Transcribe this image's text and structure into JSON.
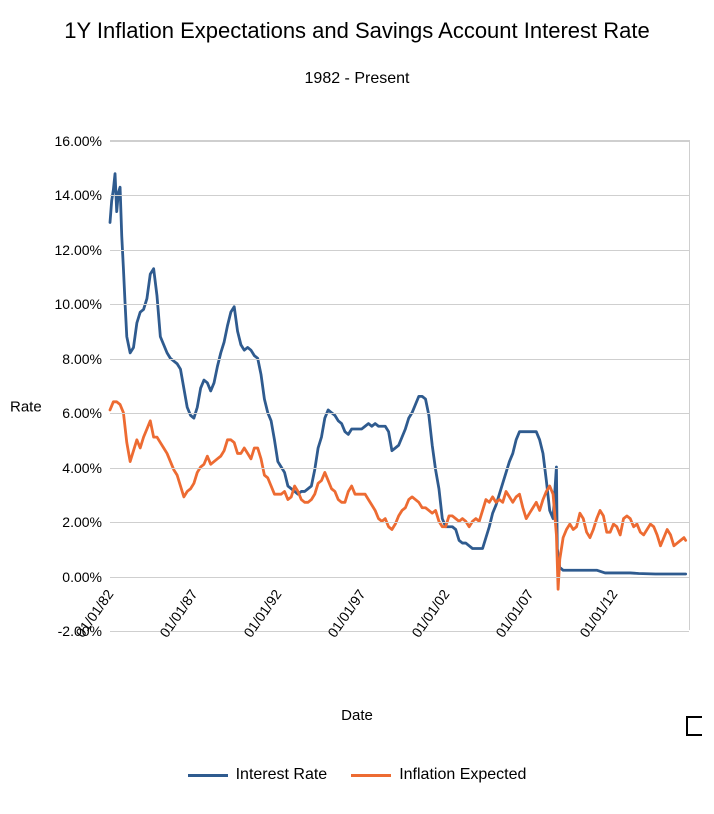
{
  "title": "1Y Inflation Expectations and Savings Account Interest Rate",
  "subtitle": "1982 - Present",
  "y_axis_label": "Rate",
  "x_axis_label": "Date",
  "y_axis": {
    "min": -2.0,
    "max": 16.0,
    "ticks": [
      -2.0,
      0.0,
      2.0,
      4.0,
      6.0,
      8.0,
      10.0,
      12.0,
      14.0,
      16.0
    ],
    "tick_labels": [
      "-2.00%",
      "0.00%",
      "2.00%",
      "4.00%",
      "6.00%",
      "8.00%",
      "10.00%",
      "12.00%",
      "14.00%",
      "16.00%"
    ]
  },
  "x_axis": {
    "min": 1982.0,
    "max": 2016.5,
    "ticks": [
      1982.0,
      1987.0,
      1992.0,
      1997.0,
      2002.0,
      2007.0,
      2012.0
    ],
    "tick_labels": [
      "01/01/82",
      "01/01/87",
      "01/01/92",
      "01/01/97",
      "01/01/02",
      "01/01/07",
      "01/01/12"
    ]
  },
  "grid_color": "#cfcfcf",
  "background_color": "#ffffff",
  "title_fontsize": 22,
  "subtitle_fontsize": 16,
  "label_fontsize": 15,
  "tick_fontsize": 14,
  "legend_fontsize": 16,
  "line_width": 2.8,
  "series": [
    {
      "name": "Interest Rate",
      "color": "#2f5b8f",
      "points": [
        [
          1982.0,
          13.0
        ],
        [
          1982.1,
          13.8
        ],
        [
          1982.2,
          14.2
        ],
        [
          1982.3,
          14.8
        ],
        [
          1982.4,
          13.4
        ],
        [
          1982.5,
          14.1
        ],
        [
          1982.6,
          14.3
        ],
        [
          1982.7,
          12.5
        ],
        [
          1982.8,
          11.3
        ],
        [
          1982.9,
          10.0
        ],
        [
          1983.0,
          8.8
        ],
        [
          1983.2,
          8.2
        ],
        [
          1983.4,
          8.4
        ],
        [
          1983.6,
          9.3
        ],
        [
          1983.8,
          9.7
        ],
        [
          1984.0,
          9.8
        ],
        [
          1984.2,
          10.2
        ],
        [
          1984.4,
          11.1
        ],
        [
          1984.6,
          11.3
        ],
        [
          1984.8,
          10.3
        ],
        [
          1985.0,
          8.8
        ],
        [
          1985.2,
          8.5
        ],
        [
          1985.4,
          8.2
        ],
        [
          1985.6,
          8.0
        ],
        [
          1985.8,
          7.9
        ],
        [
          1986.0,
          7.8
        ],
        [
          1986.2,
          7.6
        ],
        [
          1986.4,
          6.9
        ],
        [
          1986.6,
          6.2
        ],
        [
          1986.8,
          5.9
        ],
        [
          1987.0,
          5.8
        ],
        [
          1987.2,
          6.2
        ],
        [
          1987.4,
          6.9
        ],
        [
          1987.6,
          7.2
        ],
        [
          1987.8,
          7.1
        ],
        [
          1988.0,
          6.8
        ],
        [
          1988.2,
          7.1
        ],
        [
          1988.4,
          7.7
        ],
        [
          1988.6,
          8.2
        ],
        [
          1988.8,
          8.6
        ],
        [
          1989.0,
          9.2
        ],
        [
          1989.2,
          9.7
        ],
        [
          1989.4,
          9.9
        ],
        [
          1989.6,
          9.0
        ],
        [
          1989.8,
          8.5
        ],
        [
          1990.0,
          8.3
        ],
        [
          1990.2,
          8.4
        ],
        [
          1990.4,
          8.3
        ],
        [
          1990.6,
          8.1
        ],
        [
          1990.8,
          8.0
        ],
        [
          1991.0,
          7.4
        ],
        [
          1991.2,
          6.5
        ],
        [
          1991.4,
          6.0
        ],
        [
          1991.6,
          5.7
        ],
        [
          1991.8,
          5.0
        ],
        [
          1992.0,
          4.2
        ],
        [
          1992.2,
          4.0
        ],
        [
          1992.4,
          3.8
        ],
        [
          1992.6,
          3.3
        ],
        [
          1992.8,
          3.2
        ],
        [
          1993.0,
          3.1
        ],
        [
          1993.2,
          3.0
        ],
        [
          1993.4,
          3.1
        ],
        [
          1993.6,
          3.1
        ],
        [
          1993.8,
          3.2
        ],
        [
          1994.0,
          3.3
        ],
        [
          1994.2,
          3.9
        ],
        [
          1994.4,
          4.7
        ],
        [
          1994.6,
          5.1
        ],
        [
          1994.8,
          5.8
        ],
        [
          1995.0,
          6.1
        ],
        [
          1995.2,
          6.0
        ],
        [
          1995.4,
          5.9
        ],
        [
          1995.6,
          5.7
        ],
        [
          1995.8,
          5.6
        ],
        [
          1996.0,
          5.3
        ],
        [
          1996.2,
          5.2
        ],
        [
          1996.4,
          5.4
        ],
        [
          1996.6,
          5.4
        ],
        [
          1996.8,
          5.4
        ],
        [
          1997.0,
          5.4
        ],
        [
          1997.2,
          5.5
        ],
        [
          1997.4,
          5.6
        ],
        [
          1997.6,
          5.5
        ],
        [
          1997.8,
          5.6
        ],
        [
          1998.0,
          5.5
        ],
        [
          1998.2,
          5.5
        ],
        [
          1998.4,
          5.5
        ],
        [
          1998.6,
          5.3
        ],
        [
          1998.8,
          4.6
        ],
        [
          1999.0,
          4.7
        ],
        [
          1999.2,
          4.8
        ],
        [
          1999.4,
          5.1
        ],
        [
          1999.6,
          5.4
        ],
        [
          1999.8,
          5.8
        ],
        [
          2000.0,
          6.0
        ],
        [
          2000.2,
          6.3
        ],
        [
          2000.4,
          6.6
        ],
        [
          2000.6,
          6.6
        ],
        [
          2000.8,
          6.5
        ],
        [
          2001.0,
          5.9
        ],
        [
          2001.2,
          4.8
        ],
        [
          2001.4,
          3.9
        ],
        [
          2001.6,
          3.2
        ],
        [
          2001.8,
          2.1
        ],
        [
          2002.0,
          1.8
        ],
        [
          2002.2,
          1.8
        ],
        [
          2002.4,
          1.8
        ],
        [
          2002.6,
          1.7
        ],
        [
          2002.8,
          1.3
        ],
        [
          2003.0,
          1.2
        ],
        [
          2003.2,
          1.2
        ],
        [
          2003.4,
          1.1
        ],
        [
          2003.6,
          1.0
        ],
        [
          2003.8,
          1.0
        ],
        [
          2004.0,
          1.0
        ],
        [
          2004.2,
          1.0
        ],
        [
          2004.4,
          1.4
        ],
        [
          2004.6,
          1.8
        ],
        [
          2004.8,
          2.3
        ],
        [
          2005.0,
          2.6
        ],
        [
          2005.2,
          3.0
        ],
        [
          2005.4,
          3.4
        ],
        [
          2005.6,
          3.8
        ],
        [
          2005.8,
          4.2
        ],
        [
          2006.0,
          4.5
        ],
        [
          2006.2,
          5.0
        ],
        [
          2006.4,
          5.3
        ],
        [
          2006.6,
          5.3
        ],
        [
          2006.8,
          5.3
        ],
        [
          2007.0,
          5.3
        ],
        [
          2007.2,
          5.3
        ],
        [
          2007.4,
          5.3
        ],
        [
          2007.6,
          5.0
        ],
        [
          2007.8,
          4.5
        ],
        [
          2008.0,
          3.5
        ],
        [
          2008.2,
          2.4
        ],
        [
          2008.4,
          2.1
        ],
        [
          2008.6,
          4.0
        ],
        [
          2008.65,
          1.0
        ],
        [
          2008.8,
          0.3
        ],
        [
          2009.0,
          0.2
        ],
        [
          2009.5,
          0.2
        ],
        [
          2010.0,
          0.2
        ],
        [
          2010.5,
          0.2
        ],
        [
          2011.0,
          0.2
        ],
        [
          2011.5,
          0.1
        ],
        [
          2012.0,
          0.1
        ],
        [
          2012.5,
          0.1
        ],
        [
          2013.0,
          0.1
        ],
        [
          2013.5,
          0.08
        ],
        [
          2014.0,
          0.07
        ],
        [
          2014.5,
          0.06
        ],
        [
          2015.0,
          0.06
        ],
        [
          2015.5,
          0.06
        ],
        [
          2016.0,
          0.06
        ],
        [
          2016.3,
          0.06
        ]
      ]
    },
    {
      "name": "Inflation Expected",
      "color": "#ed6b32",
      "points": [
        [
          1982.0,
          6.1
        ],
        [
          1982.2,
          6.4
        ],
        [
          1982.4,
          6.4
        ],
        [
          1982.6,
          6.3
        ],
        [
          1982.8,
          6.0
        ],
        [
          1983.0,
          4.9
        ],
        [
          1983.2,
          4.2
        ],
        [
          1983.4,
          4.6
        ],
        [
          1983.6,
          5.0
        ],
        [
          1983.8,
          4.7
        ],
        [
          1984.0,
          5.1
        ],
        [
          1984.2,
          5.4
        ],
        [
          1984.4,
          5.7
        ],
        [
          1984.6,
          5.1
        ],
        [
          1984.8,
          5.1
        ],
        [
          1985.0,
          4.9
        ],
        [
          1985.2,
          4.7
        ],
        [
          1985.4,
          4.5
        ],
        [
          1985.6,
          4.2
        ],
        [
          1985.8,
          3.9
        ],
        [
          1986.0,
          3.7
        ],
        [
          1986.2,
          3.3
        ],
        [
          1986.4,
          2.9
        ],
        [
          1986.6,
          3.1
        ],
        [
          1986.8,
          3.2
        ],
        [
          1987.0,
          3.4
        ],
        [
          1987.2,
          3.8
        ],
        [
          1987.4,
          4.0
        ],
        [
          1987.6,
          4.1
        ],
        [
          1987.8,
          4.4
        ],
        [
          1988.0,
          4.1
        ],
        [
          1988.2,
          4.2
        ],
        [
          1988.4,
          4.3
        ],
        [
          1988.6,
          4.4
        ],
        [
          1988.8,
          4.6
        ],
        [
          1989.0,
          5.0
        ],
        [
          1989.2,
          5.0
        ],
        [
          1989.4,
          4.9
        ],
        [
          1989.6,
          4.5
        ],
        [
          1989.8,
          4.5
        ],
        [
          1990.0,
          4.7
        ],
        [
          1990.2,
          4.5
        ],
        [
          1990.4,
          4.3
        ],
        [
          1990.6,
          4.7
        ],
        [
          1990.8,
          4.7
        ],
        [
          1991.0,
          4.3
        ],
        [
          1991.2,
          3.7
        ],
        [
          1991.4,
          3.6
        ],
        [
          1991.6,
          3.3
        ],
        [
          1991.8,
          3.0
        ],
        [
          1992.0,
          3.0
        ],
        [
          1992.2,
          3.0
        ],
        [
          1992.4,
          3.1
        ],
        [
          1992.6,
          2.8
        ],
        [
          1992.8,
          2.9
        ],
        [
          1993.0,
          3.3
        ],
        [
          1993.2,
          3.1
        ],
        [
          1993.4,
          2.8
        ],
        [
          1993.6,
          2.7
        ],
        [
          1993.8,
          2.7
        ],
        [
          1994.0,
          2.8
        ],
        [
          1994.2,
          3.0
        ],
        [
          1994.4,
          3.4
        ],
        [
          1994.6,
          3.5
        ],
        [
          1994.8,
          3.8
        ],
        [
          1995.0,
          3.5
        ],
        [
          1995.2,
          3.2
        ],
        [
          1995.4,
          3.1
        ],
        [
          1995.6,
          2.8
        ],
        [
          1995.8,
          2.7
        ],
        [
          1996.0,
          2.7
        ],
        [
          1996.2,
          3.1
        ],
        [
          1996.4,
          3.3
        ],
        [
          1996.6,
          3.0
        ],
        [
          1996.8,
          3.0
        ],
        [
          1997.0,
          3.0
        ],
        [
          1997.2,
          3.0
        ],
        [
          1997.4,
          2.8
        ],
        [
          1997.6,
          2.6
        ],
        [
          1997.8,
          2.4
        ],
        [
          1998.0,
          2.1
        ],
        [
          1998.2,
          2.0
        ],
        [
          1998.4,
          2.1
        ],
        [
          1998.6,
          1.8
        ],
        [
          1998.8,
          1.7
        ],
        [
          1999.0,
          1.9
        ],
        [
          1999.2,
          2.2
        ],
        [
          1999.4,
          2.4
        ],
        [
          1999.6,
          2.5
        ],
        [
          1999.8,
          2.8
        ],
        [
          2000.0,
          2.9
        ],
        [
          2000.2,
          2.8
        ],
        [
          2000.4,
          2.7
        ],
        [
          2000.6,
          2.5
        ],
        [
          2000.8,
          2.5
        ],
        [
          2001.0,
          2.4
        ],
        [
          2001.2,
          2.3
        ],
        [
          2001.4,
          2.4
        ],
        [
          2001.6,
          2.0
        ],
        [
          2001.8,
          1.8
        ],
        [
          2002.0,
          1.8
        ],
        [
          2002.2,
          2.2
        ],
        [
          2002.4,
          2.2
        ],
        [
          2002.6,
          2.1
        ],
        [
          2002.8,
          2.0
        ],
        [
          2003.0,
          2.1
        ],
        [
          2003.2,
          2.0
        ],
        [
          2003.4,
          1.8
        ],
        [
          2003.6,
          2.0
        ],
        [
          2003.8,
          2.1
        ],
        [
          2004.0,
          2.0
        ],
        [
          2004.2,
          2.4
        ],
        [
          2004.4,
          2.8
        ],
        [
          2004.6,
          2.7
        ],
        [
          2004.8,
          2.9
        ],
        [
          2005.0,
          2.7
        ],
        [
          2005.2,
          2.8
        ],
        [
          2005.4,
          2.7
        ],
        [
          2005.6,
          3.1
        ],
        [
          2005.8,
          2.9
        ],
        [
          2006.0,
          2.7
        ],
        [
          2006.2,
          2.9
        ],
        [
          2006.4,
          3.0
        ],
        [
          2006.6,
          2.5
        ],
        [
          2006.8,
          2.1
        ],
        [
          2007.0,
          2.3
        ],
        [
          2007.2,
          2.5
        ],
        [
          2007.4,
          2.7
        ],
        [
          2007.6,
          2.4
        ],
        [
          2007.8,
          2.8
        ],
        [
          2008.0,
          3.1
        ],
        [
          2008.2,
          3.3
        ],
        [
          2008.4,
          3.0
        ],
        [
          2008.6,
          1.5
        ],
        [
          2008.7,
          -0.5
        ],
        [
          2008.8,
          0.6
        ],
        [
          2009.0,
          1.4
        ],
        [
          2009.2,
          1.7
        ],
        [
          2009.4,
          1.9
        ],
        [
          2009.6,
          1.7
        ],
        [
          2009.8,
          1.8
        ],
        [
          2010.0,
          2.3
        ],
        [
          2010.2,
          2.1
        ],
        [
          2010.4,
          1.6
        ],
        [
          2010.6,
          1.4
        ],
        [
          2010.8,
          1.7
        ],
        [
          2011.0,
          2.1
        ],
        [
          2011.2,
          2.4
        ],
        [
          2011.4,
          2.2
        ],
        [
          2011.6,
          1.6
        ],
        [
          2011.8,
          1.6
        ],
        [
          2012.0,
          1.9
        ],
        [
          2012.2,
          1.8
        ],
        [
          2012.4,
          1.5
        ],
        [
          2012.6,
          2.1
        ],
        [
          2012.8,
          2.2
        ],
        [
          2013.0,
          2.1
        ],
        [
          2013.2,
          1.8
        ],
        [
          2013.4,
          1.9
        ],
        [
          2013.6,
          1.6
        ],
        [
          2013.8,
          1.5
        ],
        [
          2014.0,
          1.7
        ],
        [
          2014.2,
          1.9
        ],
        [
          2014.4,
          1.8
        ],
        [
          2014.6,
          1.5
        ],
        [
          2014.8,
          1.1
        ],
        [
          2015.0,
          1.4
        ],
        [
          2015.2,
          1.7
        ],
        [
          2015.4,
          1.5
        ],
        [
          2015.6,
          1.1
        ],
        [
          2015.8,
          1.2
        ],
        [
          2016.0,
          1.3
        ],
        [
          2016.2,
          1.4
        ],
        [
          2016.3,
          1.3
        ]
      ]
    }
  ],
  "legend": {
    "items": [
      {
        "label": "Interest Rate",
        "color": "#2f5b8f"
      },
      {
        "label": "Inflation Expected",
        "color": "#ed6b32"
      }
    ]
  }
}
